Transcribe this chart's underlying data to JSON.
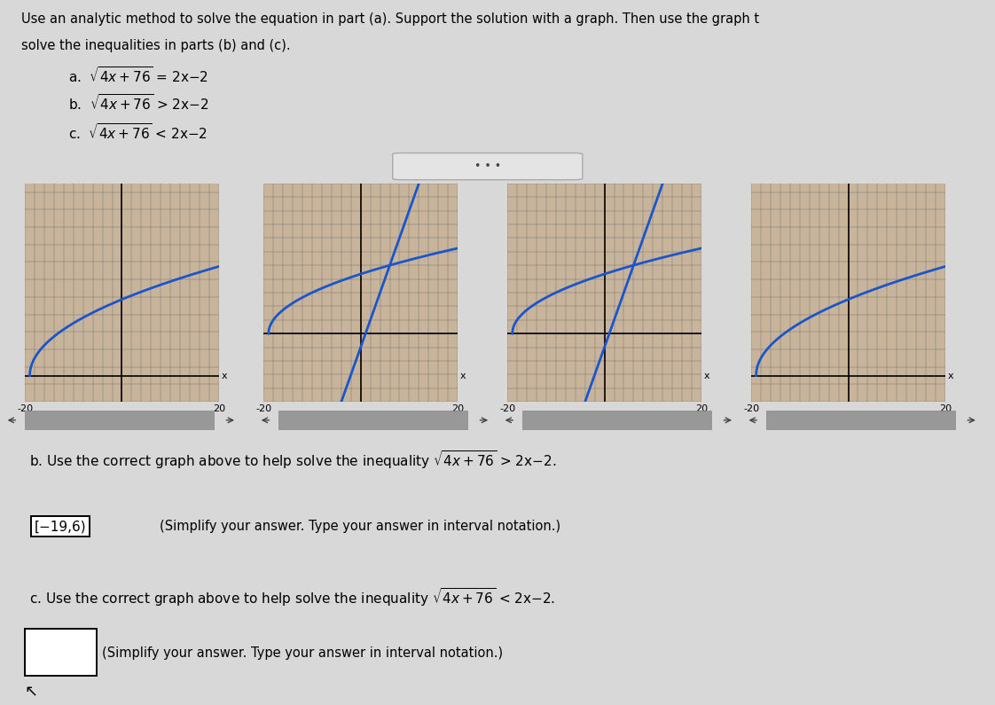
{
  "title_line1": "Use an analytic method to solve the equation in part (a). Support the solution with a graph. Then use the graph t",
  "title_line2": "solve the inequalities in parts (b) and (c).",
  "eq_a": "a.  $\\sqrt{4x+76}$ = 2x−2",
  "eq_b": "b.  $\\sqrt{4x+76}$ > 2x−2",
  "eq_c": "c.  $\\sqrt{4x+76}$ < 2x−2",
  "graph_xlim": [
    -20,
    20
  ],
  "graph_ylim_1": [
    -3,
    22
  ],
  "graph_ylim_2": [
    -10,
    22
  ],
  "graph_ylim_3": [
    -10,
    22
  ],
  "graph_ylim_4": [
    -3,
    22
  ],
  "graph_bg": "#c8b49a",
  "grid_color": "#888888",
  "curve_color": "#1a55cc",
  "line_color": "#1a55cc",
  "page_bg": "#d8d8d8",
  "white": "#ffffff",
  "answer_b": "[−19,6)",
  "bottom_b": "b. Use the correct graph above to help solve the inequality $\\sqrt{4x+76}$ > 2x−2.",
  "bottom_c": "c. Use the correct graph above to help solve the inequality $\\sqrt{4x+76}$ < 2x−2.",
  "simplify_text": "(Simplify your answer. Type your answer in interval notation.)"
}
